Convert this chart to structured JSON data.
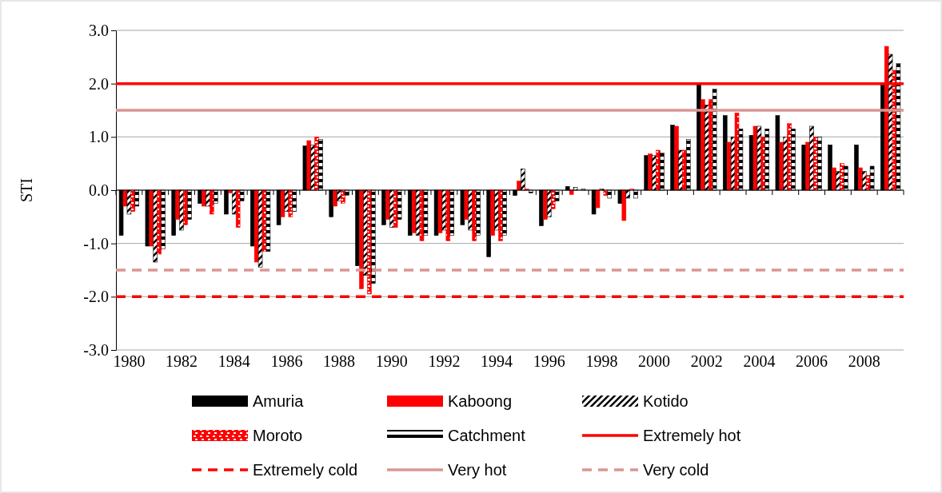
{
  "chart_data": {
    "type": "bar",
    "ylabel": "STI",
    "categories": [
      "1980",
      null,
      "1982",
      null,
      "1984",
      null,
      "1986",
      null,
      "1988",
      null,
      "1990",
      null,
      "1992",
      null,
      "1994",
      null,
      "1996",
      null,
      "1998",
      null,
      "2000",
      null,
      "2002",
      null,
      "2004",
      null,
      "2006",
      null,
      "2008",
      null
    ],
    "series": [
      {
        "name": "Amuria",
        "color": "#000000",
        "values": [
          -0.85,
          -1.05,
          -0.85,
          -0.25,
          -0.45,
          -1.05,
          -0.65,
          0.83,
          -0.5,
          -1.42,
          -0.65,
          -0.85,
          -0.85,
          -0.65,
          -1.25,
          -0.1,
          -0.67,
          0.07,
          -0.45,
          -0.25,
          0.65,
          1.22,
          2.0,
          1.4,
          1.03,
          1.4,
          0.85,
          0.85,
          0.85,
          2.0
        ]
      },
      {
        "name": "Kaboong",
        "color": "#ff0000",
        "values": [
          -0.3,
          -1.05,
          -0.55,
          -0.3,
          -0.05,
          -1.35,
          -0.5,
          0.93,
          -0.3,
          -1.85,
          -0.55,
          -0.8,
          -0.8,
          -0.55,
          -0.85,
          0.17,
          -0.55,
          -0.08,
          -0.33,
          -0.57,
          0.68,
          1.2,
          1.7,
          0.9,
          1.2,
          0.9,
          0.9,
          0.42,
          0.42,
          2.7
        ]
      },
      {
        "name": "Kotido",
        "color": "#000000",
        "values": [
          -0.45,
          -1.35,
          -0.75,
          -0.3,
          -0.45,
          -1.45,
          -0.4,
          0.85,
          -0.2,
          -1.6,
          -0.7,
          -0.85,
          -0.75,
          -0.75,
          -0.75,
          0.4,
          -0.5,
          0.05,
          0.02,
          -0.15,
          0.65,
          0.75,
          1.6,
          1.0,
          1.2,
          1.0,
          1.2,
          0.35,
          0.35,
          2.55
        ]
      },
      {
        "name": "Moroto",
        "color": "#ff0000",
        "values": [
          -0.4,
          -1.2,
          -0.65,
          -0.45,
          -0.7,
          -1.15,
          -0.5,
          1.0,
          -0.25,
          -1.95,
          -0.7,
          -0.95,
          -0.95,
          -0.95,
          -0.95,
          0.02,
          -0.35,
          null,
          -0.1,
          0.02,
          0.75,
          0.75,
          1.7,
          1.45,
          1.0,
          1.25,
          1.0,
          0.5,
          0.28,
          2.25
        ]
      },
      {
        "name": "Catchment",
        "color": "#000000",
        "values": [
          -0.3,
          -1.1,
          -0.55,
          -0.25,
          -0.2,
          -1.15,
          -0.4,
          0.95,
          -0.1,
          -1.75,
          -0.55,
          -0.85,
          -0.85,
          -0.85,
          -0.85,
          -0.05,
          -0.2,
          0.02,
          -0.15,
          -0.15,
          0.7,
          0.95,
          1.9,
          1.15,
          1.15,
          1.15,
          1.0,
          0.45,
          0.45,
          2.38
        ]
      }
    ],
    "ylim": [
      -3,
      3
    ],
    "yticks": [
      {
        "value": -3,
        "label": "-3.0"
      },
      {
        "value": -2,
        "label": "-2.0"
      },
      {
        "value": -1,
        "label": "-1.0"
      },
      {
        "value": 0,
        "label": "0.0"
      },
      {
        "value": 1,
        "label": "1.0"
      },
      {
        "value": 2,
        "label": "2.0"
      },
      {
        "value": 3,
        "label": "3.0"
      }
    ],
    "grid": "y",
    "legend": "bottom",
    "ref_lines": [
      {
        "axis": "y",
        "value": 2,
        "label": "Extremely hot",
        "color": "#ff0000",
        "line_style": "solid"
      },
      {
        "axis": "y",
        "value": -2,
        "label": "Extremely cold",
        "color": "#ff0000",
        "line_style": "dashed"
      },
      {
        "axis": "y",
        "value": 1.5,
        "label": "Very hot",
        "color": "#d99694",
        "line_style": "solid"
      },
      {
        "axis": "y",
        "value": -1.5,
        "label": "Very cold",
        "color": "#d99694",
        "line_style": "dashed"
      }
    ]
  }
}
